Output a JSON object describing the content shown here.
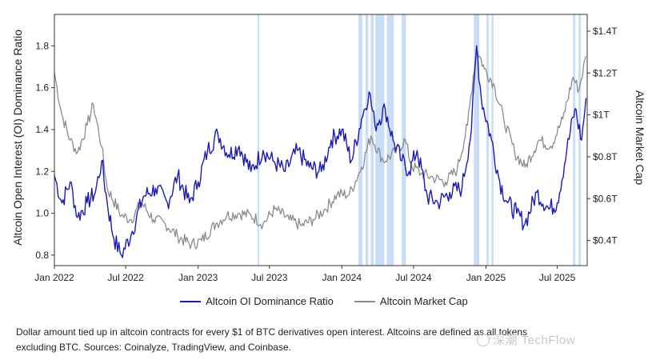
{
  "chart_data": {
    "type": "line",
    "x_tick_labels": [
      "Jan 2022",
      "Jul 2022",
      "Jan 2023",
      "Jul 2023",
      "Jan 2024",
      "Jul 2024",
      "Jan 2025",
      "Jul 2025"
    ],
    "x_range": [
      "2022-01-01",
      "2025-09-15"
    ],
    "y_left": {
      "label": "Altcoin Open Interest (OI) Dominance Ratio",
      "range": [
        0.75,
        1.95
      ],
      "ticks": [
        "0.8",
        "1.0",
        "1.2",
        "1.4",
        "1.6",
        "1.8"
      ],
      "tick_values": [
        0.8,
        1.0,
        1.2,
        1.4,
        1.6,
        1.8
      ]
    },
    "y_right": {
      "label": "Altcoin Market Cap",
      "range": [
        0.28,
        1.48
      ],
      "ticks": [
        "$0.4T",
        "$0.6T",
        "$0.8T",
        "$1T",
        "$1.2T",
        "$1.4T"
      ],
      "tick_values": [
        0.4,
        0.6,
        0.8,
        1.0,
        1.2,
        1.4
      ]
    },
    "grid": false,
    "legend_placement": "bottom",
    "series": [
      {
        "name": "Altcoin OI Dominance Ratio",
        "axis": "left",
        "color": "#1a1ab8",
        "points": [
          [
            "2022-01-01",
            1.18
          ],
          [
            "2022-01-20",
            1.05
          ],
          [
            "2022-02-10",
            1.15
          ],
          [
            "2022-03-01",
            0.98
          ],
          [
            "2022-03-25",
            1.05
          ],
          [
            "2022-04-15",
            1.1
          ],
          [
            "2022-05-01",
            1.25
          ],
          [
            "2022-05-15",
            1.05
          ],
          [
            "2022-06-01",
            0.88
          ],
          [
            "2022-06-20",
            0.8
          ],
          [
            "2022-07-15",
            0.9
          ],
          [
            "2022-08-15",
            1.08
          ],
          [
            "2022-09-15",
            1.12
          ],
          [
            "2022-10-15",
            1.05
          ],
          [
            "2022-11-10",
            1.18
          ],
          [
            "2022-12-10",
            1.05
          ],
          [
            "2023-01-01",
            1.15
          ],
          [
            "2023-01-25",
            1.3
          ],
          [
            "2023-02-20",
            1.38
          ],
          [
            "2023-03-20",
            1.28
          ],
          [
            "2023-04-15",
            1.32
          ],
          [
            "2023-05-15",
            1.2
          ],
          [
            "2023-06-15",
            1.3
          ],
          [
            "2023-07-10",
            1.25
          ],
          [
            "2023-08-10",
            1.2
          ],
          [
            "2023-09-10",
            1.3
          ],
          [
            "2023-10-10",
            1.22
          ],
          [
            "2023-11-10",
            1.2
          ],
          [
            "2023-12-05",
            1.35
          ],
          [
            "2024-01-01",
            1.4
          ],
          [
            "2024-01-25",
            1.25
          ],
          [
            "2024-02-20",
            1.45
          ],
          [
            "2024-03-10",
            1.58
          ],
          [
            "2024-03-25",
            1.42
          ],
          [
            "2024-04-20",
            1.5
          ],
          [
            "2024-05-10",
            1.35
          ],
          [
            "2024-06-01",
            1.25
          ],
          [
            "2024-06-20",
            1.2
          ],
          [
            "2024-07-10",
            1.3
          ],
          [
            "2024-08-05",
            1.08
          ],
          [
            "2024-09-01",
            1.05
          ],
          [
            "2024-10-01",
            1.1
          ],
          [
            "2024-11-01",
            1.12
          ],
          [
            "2024-11-25",
            1.4
          ],
          [
            "2024-12-08",
            1.8
          ],
          [
            "2024-12-20",
            1.55
          ],
          [
            "2025-01-15",
            1.35
          ],
          [
            "2025-02-05",
            1.15
          ],
          [
            "2025-02-25",
            1.05
          ],
          [
            "2025-03-20",
            1.0
          ],
          [
            "2025-04-10",
            0.95
          ],
          [
            "2025-05-10",
            1.1
          ],
          [
            "2025-06-10",
            1.02
          ],
          [
            "2025-07-01",
            1.05
          ],
          [
            "2025-07-25",
            1.3
          ],
          [
            "2025-08-15",
            1.5
          ],
          [
            "2025-09-01",
            1.35
          ],
          [
            "2025-09-12",
            1.55
          ]
        ]
      },
      {
        "name": "Altcoin Market Cap",
        "axis": "right",
        "color": "#8c8c8c",
        "points": [
          [
            "2022-01-01",
            1.2
          ],
          [
            "2022-01-20",
            1.0
          ],
          [
            "2022-02-10",
            0.88
          ],
          [
            "2022-03-01",
            0.82
          ],
          [
            "2022-03-25",
            0.95
          ],
          [
            "2022-04-10",
            1.05
          ],
          [
            "2022-05-01",
            0.85
          ],
          [
            "2022-05-15",
            0.65
          ],
          [
            "2022-06-20",
            0.52
          ],
          [
            "2022-07-15",
            0.5
          ],
          [
            "2022-08-10",
            0.58
          ],
          [
            "2022-09-10",
            0.5
          ],
          [
            "2022-10-10",
            0.48
          ],
          [
            "2022-11-10",
            0.42
          ],
          [
            "2022-12-15",
            0.38
          ],
          [
            "2023-01-10",
            0.4
          ],
          [
            "2023-02-15",
            0.48
          ],
          [
            "2023-03-15",
            0.52
          ],
          [
            "2023-04-15",
            0.53
          ],
          [
            "2023-05-15",
            0.52
          ],
          [
            "2023-06-15",
            0.48
          ],
          [
            "2023-07-15",
            0.55
          ],
          [
            "2023-08-20",
            0.5
          ],
          [
            "2023-09-20",
            0.47
          ],
          [
            "2023-10-20",
            0.5
          ],
          [
            "2023-11-20",
            0.55
          ],
          [
            "2023-12-20",
            0.62
          ],
          [
            "2024-01-20",
            0.62
          ],
          [
            "2024-02-20",
            0.75
          ],
          [
            "2024-03-15",
            0.9
          ],
          [
            "2024-04-15",
            0.78
          ],
          [
            "2024-05-15",
            0.82
          ],
          [
            "2024-06-10",
            0.88
          ],
          [
            "2024-06-25",
            0.76
          ],
          [
            "2024-07-20",
            0.72
          ],
          [
            "2024-08-20",
            0.7
          ],
          [
            "2024-09-20",
            0.68
          ],
          [
            "2024-10-20",
            0.74
          ],
          [
            "2024-11-15",
            0.95
          ],
          [
            "2024-12-08",
            1.32
          ],
          [
            "2024-12-28",
            1.22
          ],
          [
            "2025-01-20",
            1.15
          ],
          [
            "2025-02-15",
            0.98
          ],
          [
            "2025-03-15",
            0.82
          ],
          [
            "2025-04-10",
            0.75
          ],
          [
            "2025-05-15",
            0.88
          ],
          [
            "2025-06-15",
            0.85
          ],
          [
            "2025-07-15",
            0.98
          ],
          [
            "2025-08-10",
            1.18
          ],
          [
            "2025-08-25",
            1.12
          ],
          [
            "2025-09-12",
            1.28
          ]
        ]
      }
    ],
    "highlight_periods": [
      [
        "2023-06-01",
        "2023-06-05"
      ],
      [
        "2024-02-12",
        "2024-02-22"
      ],
      [
        "2024-03-01",
        "2024-03-08"
      ],
      [
        "2024-03-14",
        "2024-03-22"
      ],
      [
        "2024-03-26",
        "2024-04-18"
      ],
      [
        "2024-04-24",
        "2024-05-12"
      ],
      [
        "2024-06-01",
        "2024-06-12"
      ],
      [
        "2024-12-01",
        "2024-12-15"
      ],
      [
        "2025-01-02",
        "2025-01-08"
      ],
      [
        "2025-01-15",
        "2025-01-20"
      ],
      [
        "2025-08-10",
        "2025-08-16"
      ],
      [
        "2025-08-24",
        "2025-08-30"
      ]
    ],
    "highlight_color": "#c9ddf5"
  },
  "legend": {
    "items": [
      {
        "label": "Altcoin OI Dominance Ratio",
        "color": "#1a1ab8"
      },
      {
        "label": "Altcoin Market Cap",
        "color": "#8c8c8c"
      }
    ]
  },
  "caption": "Dollar amount tied up in altcoin contracts for every $1 of BTC derivatives open interest. Altcoins are defined as all tokens excluding BTC. Sources: Coinalyze, TradingView, and Coinbase.",
  "watermark": "深潮 TechFlow"
}
